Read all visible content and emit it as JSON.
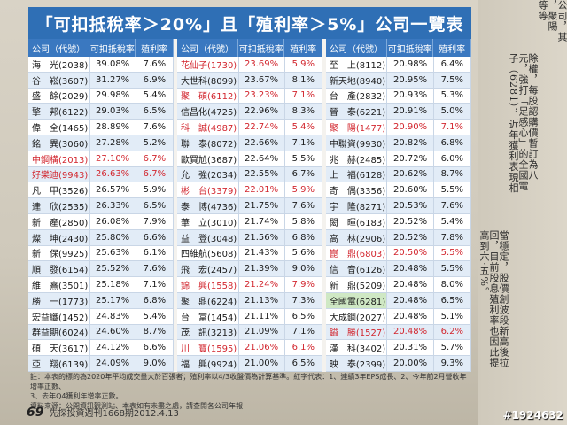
{
  "title": {
    "prefix": "「可扣抵稅率＞20%」且「殖利率＞5%」公司一覽表"
  },
  "headers": [
    "公司（代號）",
    "可扣抵稅率",
    "殖利率"
  ],
  "columns": [
    [
      [
        "海　光(2038)",
        "39.08%",
        "7.6%",
        ""
      ],
      [
        "谷　崧(3607)",
        "31.27%",
        "6.9%",
        ""
      ],
      [
        "盛　餘(2029)",
        "29.98%",
        "5.4%",
        ""
      ],
      [
        "擎　邦(6122)",
        "29.03%",
        "6.5%",
        ""
      ],
      [
        "偉　全(1465)",
        "28.89%",
        "7.6%",
        ""
      ],
      [
        "銘　異(3060)",
        "27.28%",
        "5.2%",
        ""
      ],
      [
        "中鋼構(2013)",
        "27.10%",
        "6.7%",
        "red"
      ],
      [
        "好樂迪(9943)",
        "26.63%",
        "6.7%",
        "red"
      ],
      [
        "凡　甲(3526)",
        "26.57%",
        "5.9%",
        ""
      ],
      [
        "達　欣(2535)",
        "26.33%",
        "6.5%",
        ""
      ],
      [
        "新　產(2850)",
        "26.08%",
        "7.9%",
        ""
      ],
      [
        "燦　坤(2430)",
        "25.80%",
        "6.6%",
        ""
      ],
      [
        "新　保(9925)",
        "25.63%",
        "6.1%",
        ""
      ],
      [
        "順　發(6154)",
        "25.52%",
        "7.6%",
        ""
      ],
      [
        "維　熹(3501)",
        "25.18%",
        "7.1%",
        ""
      ],
      [
        "勝　一(1773)",
        "25.17%",
        "6.8%",
        ""
      ],
      [
        "宏益纖(1452)",
        "24.83%",
        "5.4%",
        ""
      ],
      [
        "群益期(6024)",
        "24.60%",
        "8.7%",
        ""
      ],
      [
        "碩　天(3617)",
        "24.12%",
        "6.6%",
        ""
      ],
      [
        "亞　翔(6139)",
        "24.09%",
        "9.0%",
        ""
      ]
    ],
    [
      [
        "花仙子(1730)",
        "23.69%",
        "5.9%",
        "red"
      ],
      [
        "大世科(8099)",
        "23.67%",
        "8.1%",
        ""
      ],
      [
        "聚　碩(6112)",
        "23.23%",
        "7.1%",
        "red"
      ],
      [
        "信昌化(4725)",
        "22.96%",
        "8.3%",
        ""
      ],
      [
        "科　誠(4987)",
        "22.74%",
        "5.4%",
        "red"
      ],
      [
        "聯　泰(8072)",
        "22.66%",
        "7.1%",
        ""
      ],
      [
        "歐買尬(3687)",
        "22.64%",
        "5.5%",
        ""
      ],
      [
        "允　強(2034)",
        "22.55%",
        "6.7%",
        ""
      ],
      [
        "彬　台(3379)",
        "22.01%",
        "5.9%",
        "red"
      ],
      [
        "泰　博(4736)",
        "21.75%",
        "7.6%",
        ""
      ],
      [
        "華　立(3010)",
        "21.74%",
        "5.8%",
        ""
      ],
      [
        "益　登(3048)",
        "21.56%",
        "6.8%",
        ""
      ],
      [
        "四維航(5608)",
        "21.43%",
        "5.6%",
        ""
      ],
      [
        "飛　宏(2457)",
        "21.39%",
        "9.0%",
        ""
      ],
      [
        "錦　興(1558)",
        "21.24%",
        "7.9%",
        "red"
      ],
      [
        "聚　鼎(6224)",
        "21.13%",
        "7.3%",
        ""
      ],
      [
        "台　富(1454)",
        "21.11%",
        "6.5%",
        ""
      ],
      [
        "茂　訊(3213)",
        "21.09%",
        "7.1%",
        ""
      ],
      [
        "川　寶(1595)",
        "21.06%",
        "6.1%",
        "red"
      ],
      [
        "福　興(9924)",
        "21.00%",
        "6.5%",
        ""
      ]
    ],
    [
      [
        "至　上(8112)",
        "20.98%",
        "6.4%",
        ""
      ],
      [
        "新天地(8940)",
        "20.95%",
        "7.5%",
        ""
      ],
      [
        "台　產(2832)",
        "20.93%",
        "5.3%",
        ""
      ],
      [
        "晉　泰(6221)",
        "20.91%",
        "5.0%",
        ""
      ],
      [
        "聚　陽(1477)",
        "20.90%",
        "7.1%",
        "red"
      ],
      [
        "中聯資(9930)",
        "20.82%",
        "6.8%",
        ""
      ],
      [
        "兆　赫(2485)",
        "20.72%",
        "6.0%",
        ""
      ],
      [
        "上　福(6128)",
        "20.62%",
        "8.7%",
        ""
      ],
      [
        "奇　偶(3356)",
        "20.60%",
        "5.5%",
        ""
      ],
      [
        "宇　隆(8271)",
        "20.53%",
        "7.6%",
        ""
      ],
      [
        "閎　暉(6183)",
        "20.52%",
        "5.4%",
        ""
      ],
      [
        "高　林(2906)",
        "20.52%",
        "7.8%",
        ""
      ],
      [
        "崑　鼎(6803)",
        "20.50%",
        "5.5%",
        "red"
      ],
      [
        "信　音(6126)",
        "20.48%",
        "5.5%",
        ""
      ],
      [
        "新　鼎(5209)",
        "20.48%",
        "8.0%",
        ""
      ],
      [
        "全國電(6281)",
        "20.48%",
        "6.5%",
        "green"
      ],
      [
        "大成鋼(2027)",
        "20.48%",
        "5.1%",
        ""
      ],
      [
        "鎰　勝(1527)",
        "20.48%",
        "6.2%",
        "red"
      ],
      [
        "漢　科(3402)",
        "20.31%",
        "5.7%",
        ""
      ],
      [
        "映　泰(2399)",
        "20.00%",
        "9.3%",
        ""
      ]
    ]
  ],
  "footnote": [
    "註：本表的標的為2020年平均成交量大於百張者；殖利率以4/3收盤價為計算基準。紅字代表：1、連續3年EPS成長、2、今年前2月營收年增率正數、",
    "3、去年Q4獲利年增率正數。",
    "資料來源：公開資訊觀測站、本表如有未盡之處，請查閱各公司年報"
  ],
  "footer": {
    "page": "69",
    "text": "先探投資週刊1668期2012.4.13"
  },
  "side_text": [
    "公司，其",
    "，聚陽",
    "等等",
    "除權，每股認購價暫訂為八",
    "元，強打「足感心」的全國電",
    "子（6281），近年獲利表現相",
    "當穩定，股價創波段新高後拉",
    "回，目前股息殖利率也因此提",
    "高到六‧五%。"
  ],
  "watermark": "#1924632",
  "colors": {
    "header_blue": "#3a78c0",
    "title_blue": "#2f6fb5",
    "highlight_yellow": "#ffe24a",
    "red_text": "#d2262e"
  }
}
